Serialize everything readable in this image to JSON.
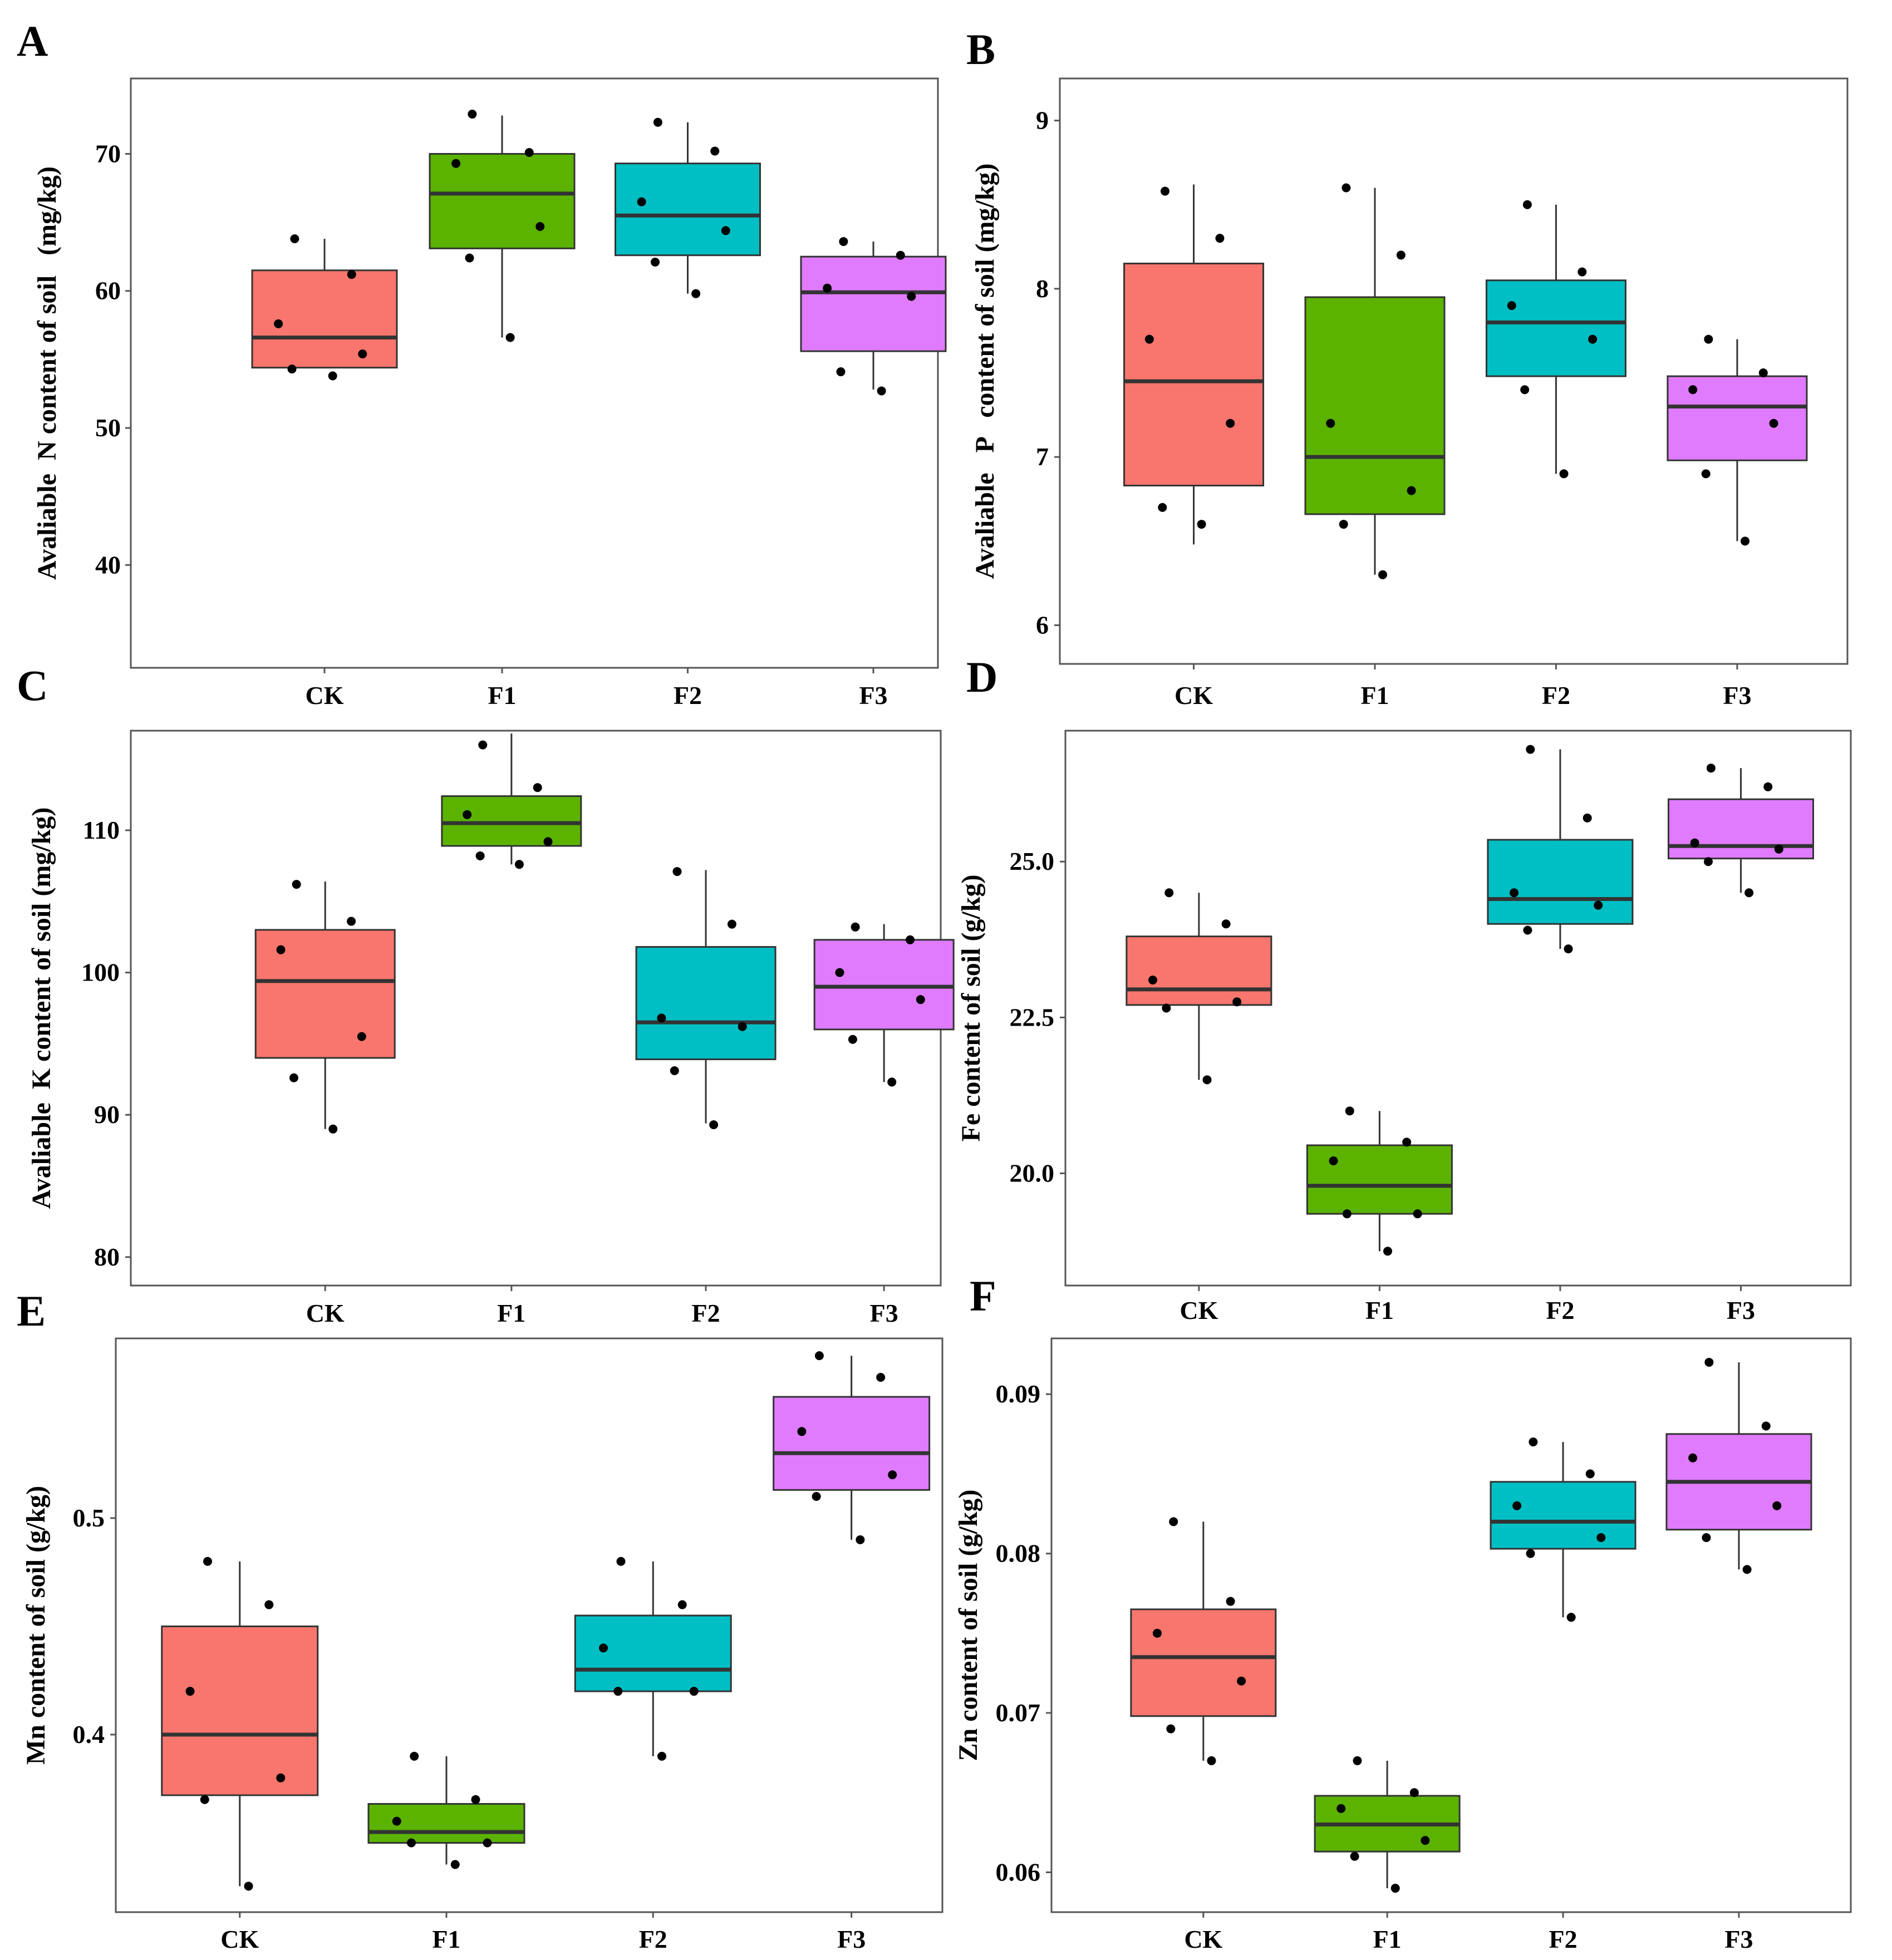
{
  "colors": {
    "CK": "#F8766D",
    "F1": "#5BB300",
    "F2": "#00BFC4",
    "F3": "#E07BFF",
    "median": "#333333",
    "point": "#000000",
    "frame": "#555555"
  },
  "chart_data": [
    {
      "panel": "A",
      "type": "box",
      "ylabel": "Avaliable  N content of soil   (mg/kg)",
      "ylim": [
        32.5,
        75.5
      ],
      "yticks": [
        40,
        50,
        60,
        70
      ],
      "ytick_labels": [
        "40",
        "50",
        "60",
        "70"
      ],
      "categories": [
        "CK",
        "F1",
        "F2",
        "F3"
      ],
      "boxes": [
        {
          "group": "CK",
          "q1": 54.4,
          "median": 56.6,
          "q3": 61.5,
          "whisker_low": 54.4,
          "whisker_high": 63.8,
          "points": [
            63.8,
            61.2,
            57.6,
            55.4,
            54.3,
            53.8
          ]
        },
        {
          "group": "F1",
          "q1": 63.1,
          "median": 67.1,
          "q3": 70.0,
          "whisker_low": 56.6,
          "whisker_high": 72.8,
          "points": [
            72.9,
            70.1,
            69.3,
            64.7,
            62.4,
            56.6
          ]
        },
        {
          "group": "F2",
          "q1": 62.6,
          "median": 65.5,
          "q3": 69.3,
          "whisker_low": 59.8,
          "whisker_high": 72.3,
          "points": [
            72.3,
            70.2,
            66.5,
            64.4,
            62.1,
            59.8
          ]
        },
        {
          "group": "F3",
          "q1": 55.6,
          "median": 59.9,
          "q3": 62.5,
          "whisker_low": 52.8,
          "whisker_high": 63.6,
          "points": [
            63.6,
            62.6,
            60.2,
            59.6,
            54.1,
            52.7
          ]
        }
      ]
    },
    {
      "panel": "B",
      "type": "box",
      "ylabel": "Avaliable   P   content of soil (mg/kg)",
      "ylim": [
        5.77,
        9.25
      ],
      "yticks": [
        6,
        7,
        8,
        9
      ],
      "ytick_labels": [
        "6",
        "7",
        "8",
        "9"
      ],
      "categories": [
        "CK",
        "F1",
        "F2",
        "F3"
      ],
      "boxes": [
        {
          "group": "CK",
          "q1": 6.83,
          "median": 7.45,
          "q3": 8.15,
          "whisker_low": 6.48,
          "whisker_high": 8.62,
          "points": [
            8.58,
            8.3,
            7.7,
            7.2,
            6.7,
            6.6
          ]
        },
        {
          "group": "F1",
          "q1": 6.66,
          "median": 7.0,
          "q3": 7.95,
          "whisker_low": 6.3,
          "whisker_high": 8.6,
          "points": [
            8.6,
            8.2,
            7.2,
            6.8,
            6.6,
            6.3
          ]
        },
        {
          "group": "F2",
          "q1": 7.48,
          "median": 7.8,
          "q3": 8.05,
          "whisker_low": 6.9,
          "whisker_high": 8.5,
          "points": [
            8.5,
            8.1,
            7.9,
            7.7,
            7.4,
            6.9
          ]
        },
        {
          "group": "F3",
          "q1": 6.98,
          "median": 7.3,
          "q3": 7.48,
          "whisker_low": 6.5,
          "whisker_high": 7.7,
          "points": [
            7.7,
            7.5,
            7.4,
            7.2,
            6.9,
            6.5
          ]
        }
      ]
    },
    {
      "panel": "C",
      "type": "box",
      "ylabel": "Avaliable  K content of soil (mg/kg)",
      "ylim": [
        78,
        117
      ],
      "yticks": [
        80,
        90,
        100,
        110
      ],
      "ytick_labels": [
        "80",
        "90",
        "100",
        "110"
      ],
      "categories": [
        "CK",
        "F1",
        "F2",
        "F3"
      ],
      "boxes": [
        {
          "group": "CK",
          "q1": 94.0,
          "median": 99.4,
          "q3": 103.0,
          "whisker_low": 89.0,
          "whisker_high": 106.4,
          "points": [
            106.2,
            103.6,
            101.6,
            95.5,
            92.6,
            89.0
          ]
        },
        {
          "group": "F1",
          "q1": 108.9,
          "median": 110.5,
          "q3": 112.4,
          "whisker_low": 107.6,
          "whisker_high": 116.8,
          "points": [
            116.0,
            113.0,
            111.1,
            109.2,
            108.2,
            107.6
          ]
        },
        {
          "group": "F2",
          "q1": 93.9,
          "median": 96.5,
          "q3": 101.8,
          "whisker_low": 89.4,
          "whisker_high": 107.2,
          "points": [
            107.1,
            103.4,
            96.8,
            96.2,
            93.1,
            89.3
          ]
        },
        {
          "group": "F3",
          "q1": 96.0,
          "median": 99.0,
          "q3": 102.3,
          "whisker_low": 92.3,
          "whisker_high": 103.4,
          "points": [
            103.2,
            102.3,
            100.0,
            98.1,
            95.3,
            92.3
          ]
        }
      ]
    },
    {
      "panel": "D",
      "type": "box",
      "ylabel": "Fe content of soil (g/kg)",
      "ylim": [
        18.2,
        27.1
      ],
      "yticks": [
        20.0,
        22.5,
        25.0
      ],
      "ytick_labels": [
        "20.0",
        "22.5",
        "25.0"
      ],
      "categories": [
        "CK",
        "F1",
        "F2",
        "F3"
      ],
      "boxes": [
        {
          "group": "CK",
          "q1": 22.7,
          "median": 22.95,
          "q3": 23.8,
          "whisker_low": 21.5,
          "whisker_high": 24.5,
          "points": [
            24.5,
            24.0,
            23.1,
            22.75,
            22.65,
            21.5
          ]
        },
        {
          "group": "F1",
          "q1": 19.35,
          "median": 19.8,
          "q3": 20.45,
          "whisker_low": 18.75,
          "whisker_high": 21.0,
          "points": [
            21.0,
            20.5,
            20.2,
            19.35,
            19.35,
            18.75
          ]
        },
        {
          "group": "F2",
          "q1": 24.0,
          "median": 24.4,
          "q3": 25.35,
          "whisker_low": 23.6,
          "whisker_high": 26.8,
          "points": [
            26.8,
            25.7,
            24.5,
            24.3,
            23.9,
            23.6
          ]
        },
        {
          "group": "F3",
          "q1": 25.05,
          "median": 25.25,
          "q3": 26.0,
          "whisker_low": 24.5,
          "whisker_high": 26.5,
          "points": [
            26.5,
            26.2,
            25.3,
            25.2,
            25.0,
            24.5
          ]
        }
      ]
    },
    {
      "panel": "E",
      "type": "box",
      "ylabel": "Mn content of soil (g/kg)",
      "ylim": [
        0.318,
        0.583
      ],
      "yticks": [
        0.4,
        0.5
      ],
      "ytick_labels": [
        "0.4",
        "0.5"
      ],
      "categories": [
        "CK",
        "F1",
        "F2",
        "F3"
      ],
      "boxes": [
        {
          "group": "CK",
          "q1": 0.372,
          "median": 0.4,
          "q3": 0.45,
          "whisker_low": 0.33,
          "whisker_high": 0.48,
          "points": [
            0.48,
            0.46,
            0.42,
            0.38,
            0.37,
            0.33
          ]
        },
        {
          "group": "F1",
          "q1": 0.35,
          "median": 0.355,
          "q3": 0.368,
          "whisker_low": 0.34,
          "whisker_high": 0.39,
          "points": [
            0.39,
            0.37,
            0.36,
            0.35,
            0.35,
            0.34
          ]
        },
        {
          "group": "F2",
          "q1": 0.42,
          "median": 0.43,
          "q3": 0.455,
          "whisker_low": 0.39,
          "whisker_high": 0.48,
          "points": [
            0.48,
            0.46,
            0.44,
            0.42,
            0.42,
            0.39
          ]
        },
        {
          "group": "F3",
          "q1": 0.513,
          "median": 0.53,
          "q3": 0.556,
          "whisker_low": 0.49,
          "whisker_high": 0.575,
          "points": [
            0.575,
            0.565,
            0.54,
            0.52,
            0.51,
            0.49
          ]
        }
      ]
    },
    {
      "panel": "F",
      "type": "box",
      "ylabel": "Zn content of soil (g/kg)",
      "ylim": [
        0.0575,
        0.0935
      ],
      "yticks": [
        0.06,
        0.07,
        0.08,
        0.09
      ],
      "ytick_labels": [
        "0.06",
        "0.07",
        "0.08",
        "0.09"
      ],
      "categories": [
        "CK",
        "F1",
        "F2",
        "F3"
      ],
      "boxes": [
        {
          "group": "CK",
          "q1": 0.0698,
          "median": 0.0735,
          "q3": 0.0765,
          "whisker_low": 0.067,
          "whisker_high": 0.082,
          "points": [
            0.082,
            0.077,
            0.075,
            0.072,
            0.069,
            0.067
          ]
        },
        {
          "group": "F1",
          "q1": 0.0613,
          "median": 0.063,
          "q3": 0.0648,
          "whisker_low": 0.059,
          "whisker_high": 0.067,
          "points": [
            0.067,
            0.065,
            0.064,
            0.062,
            0.061,
            0.059
          ]
        },
        {
          "group": "F2",
          "q1": 0.0803,
          "median": 0.082,
          "q3": 0.0845,
          "whisker_low": 0.076,
          "whisker_high": 0.087,
          "points": [
            0.087,
            0.085,
            0.083,
            0.081,
            0.08,
            0.076
          ]
        },
        {
          "group": "F3",
          "q1": 0.0815,
          "median": 0.0845,
          "q3": 0.0875,
          "whisker_low": 0.079,
          "whisker_high": 0.092,
          "points": [
            0.092,
            0.088,
            0.086,
            0.083,
            0.081,
            0.079
          ]
        }
      ]
    }
  ]
}
